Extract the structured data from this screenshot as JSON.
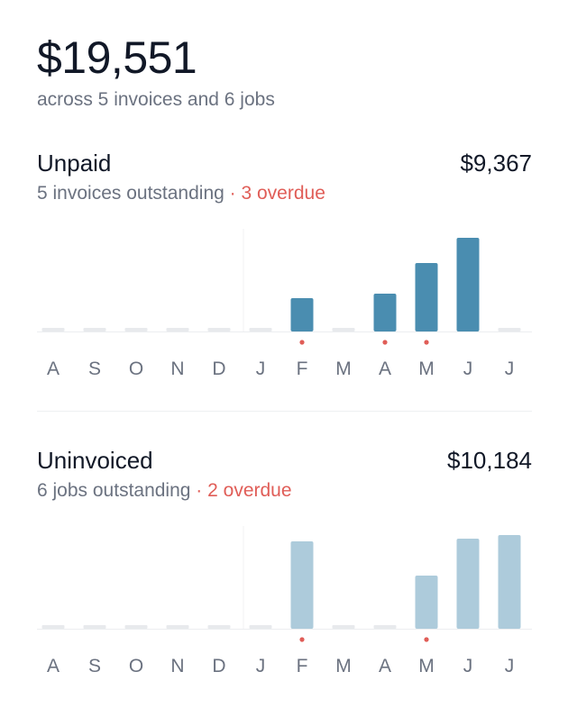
{
  "summary": {
    "total": "$19,551",
    "subtitle": "across 5 invoices and 6 jobs"
  },
  "unpaid": {
    "title": "Unpaid",
    "amount": "$9,367",
    "outstanding_text": "5 invoices outstanding",
    "separator": " · ",
    "overdue_text": "3 overdue"
  },
  "uninvoiced": {
    "title": "Uninvoiced",
    "amount": "$10,184",
    "outstanding_text": "6 jobs outstanding",
    "separator": " · ",
    "overdue_text": "2 overdue"
  },
  "chart_data": [
    {
      "type": "bar",
      "categories": [
        "A",
        "S",
        "O",
        "N",
        "D",
        "J",
        "F",
        "M",
        "A",
        "M",
        "J",
        "J"
      ],
      "values": [
        0,
        0,
        0,
        0,
        0,
        0,
        0.36,
        0,
        0.4,
        0.73,
        1.0,
        0
      ],
      "overdue": [
        false,
        false,
        false,
        false,
        false,
        false,
        true,
        false,
        true,
        true,
        false,
        false
      ],
      "ylim": [
        0,
        1
      ],
      "grid": false,
      "bar_color": "#4a8db0",
      "empty_color": "#e8eaed",
      "overdue_dot_color": "#e05d57"
    },
    {
      "type": "bar",
      "categories": [
        "A",
        "S",
        "O",
        "N",
        "D",
        "J",
        "F",
        "M",
        "A",
        "M",
        "J",
        "J"
      ],
      "values": [
        0,
        0,
        0,
        0,
        0,
        0,
        0.93,
        0,
        0,
        0.57,
        0.96,
        1.0
      ],
      "overdue": [
        false,
        false,
        false,
        false,
        false,
        false,
        true,
        false,
        false,
        true,
        false,
        false
      ],
      "ylim": [
        0,
        1
      ],
      "grid": false,
      "bar_color": "#adcbdb",
      "empty_color": "#e8eaed",
      "overdue_dot_color": "#e05d57"
    }
  ]
}
